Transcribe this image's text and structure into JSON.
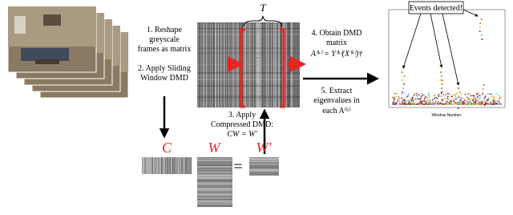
{
  "brace_label": "T",
  "steps": [
    {
      "lines": [
        "1. Reshape",
        "greyscale",
        "frames as matrix"
      ]
    },
    {
      "lines": [
        "2. Apply Sliding",
        "Window DMD"
      ]
    },
    {
      "lines": [
        "3. Apply",
        "Compressed DMD:",
        "CW = W′"
      ]
    },
    {
      "lines": [
        "4. Obtain DMD",
        "matrix",
        "A⁽ᵏ⁾ = Y⁽ᵏ⁾(X⁽ᵏ⁾)†"
      ]
    },
    {
      "lines": [
        "5. Extract",
        "eigenvalues in",
        "each A⁽ᵏ⁾"
      ]
    }
  ],
  "equation": {
    "c": "C",
    "w": "W",
    "equals": "=",
    "w_prime": "W′"
  },
  "plot": {
    "callout": "Events detected!",
    "x_label": "Window Number"
  }
}
